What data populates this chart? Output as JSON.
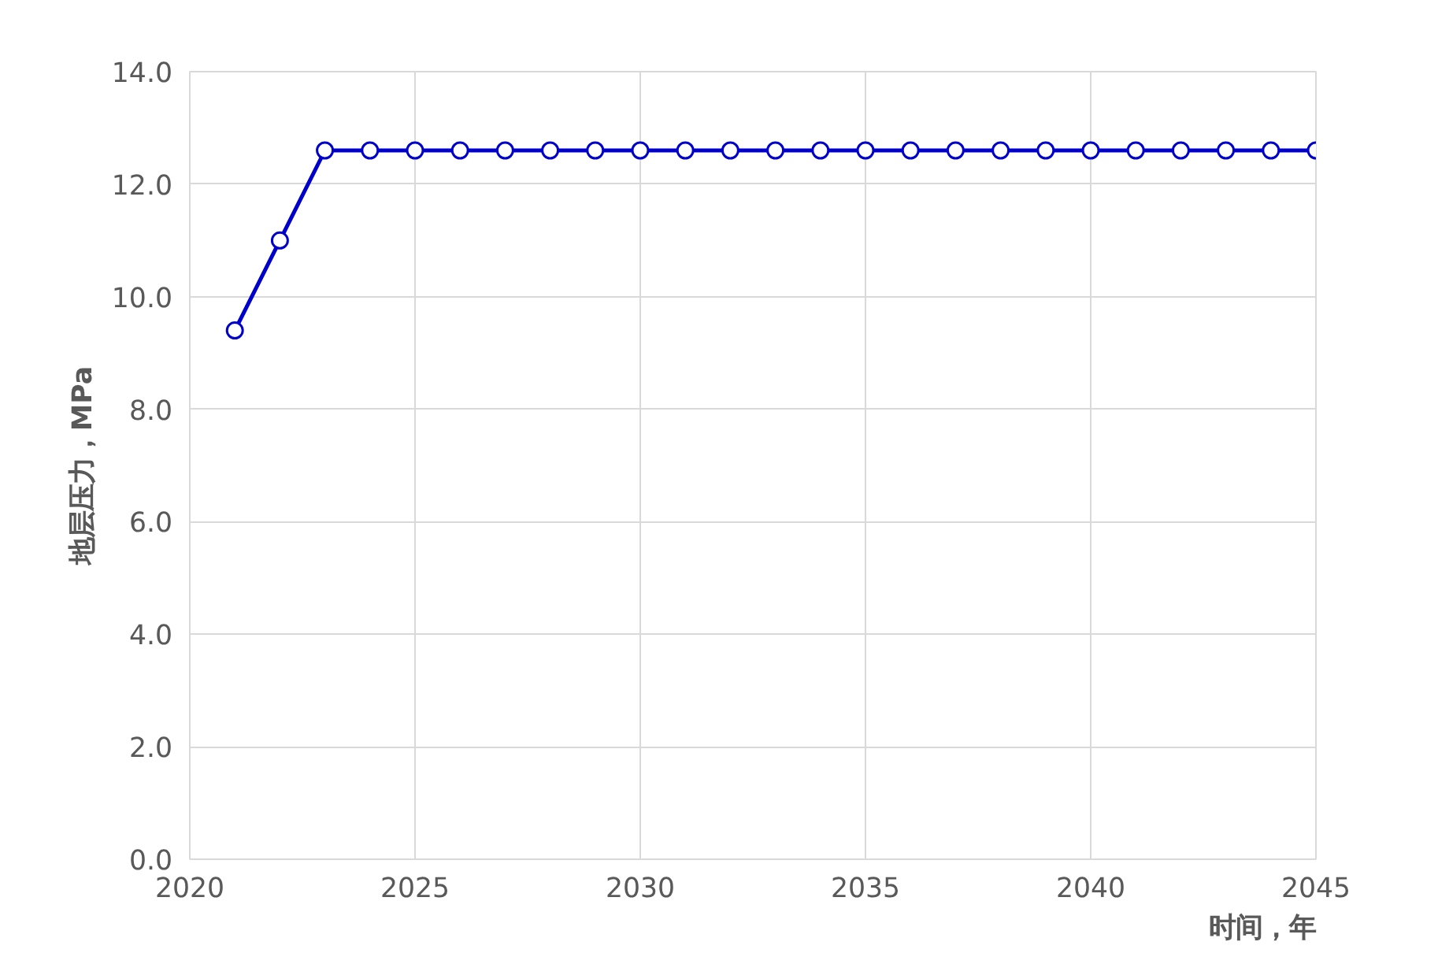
{
  "chart_data": {
    "type": "line",
    "xlabel": "时间，年",
    "ylabel": "地层压力，MPa",
    "x": [
      2021,
      2022,
      2023,
      2024,
      2025,
      2026,
      2027,
      2028,
      2029,
      2030,
      2031,
      2032,
      2033,
      2034,
      2035,
      2036,
      2037,
      2038,
      2039,
      2040,
      2041,
      2042,
      2043,
      2044,
      2045
    ],
    "series": [
      {
        "color": "#0000cc",
        "values": [
          9.4,
          11.0,
          12.6,
          12.6,
          12.6,
          12.6,
          12.6,
          12.6,
          12.6,
          12.6,
          12.6,
          12.6,
          12.6,
          12.6,
          12.6,
          12.6,
          12.6,
          12.6,
          12.6,
          12.6,
          12.6,
          12.6,
          12.6,
          12.6,
          12.6
        ]
      }
    ],
    "xlim": [
      2020,
      2045
    ],
    "xticks": [
      2020,
      2025,
      2030,
      2035,
      2040,
      2045
    ],
    "ylim": [
      0,
      14
    ],
    "yticks": [
      {
        "value": 0,
        "label": "0.0"
      },
      {
        "value": 2,
        "label": "2.0"
      },
      {
        "value": 4,
        "label": "4.0"
      },
      {
        "value": 6,
        "label": "6.0"
      },
      {
        "value": 8,
        "label": "8.0"
      },
      {
        "value": 10,
        "label": "10.0"
      },
      {
        "value": 12,
        "label": "12.0"
      },
      {
        "value": 14,
        "label": "14.0"
      }
    ],
    "grid": true,
    "marker": "circle",
    "line_style": "solid"
  }
}
